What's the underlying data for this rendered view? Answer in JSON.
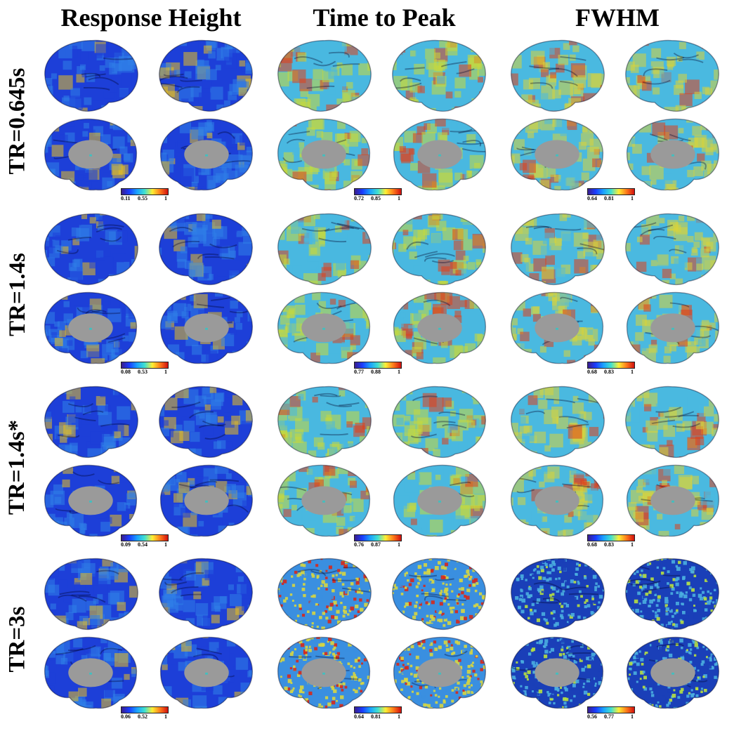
{
  "columns": [
    {
      "title": "Response Height",
      "colorbar_key": "height"
    },
    {
      "title": "Time to Peak",
      "colorbar_key": "ttp"
    },
    {
      "title": "FWHM",
      "colorbar_key": "fwhm"
    }
  ],
  "rows": [
    {
      "label": "TR=0.645s",
      "colorbars": [
        {
          "min": "0.11",
          "mid": "0.55",
          "max": "1"
        },
        {
          "min": "0.72",
          "mid": "0.85",
          "max": "1"
        },
        {
          "min": "0.64",
          "mid": "0.81",
          "max": "1"
        }
      ]
    },
    {
      "label": "TR=1.4s",
      "colorbars": [
        {
          "min": "0.08",
          "mid": "0.53",
          "max": "1"
        },
        {
          "min": "0.77",
          "mid": "0.88",
          "max": "1"
        },
        {
          "min": "0.68",
          "mid": "0.83",
          "max": "1"
        }
      ]
    },
    {
      "label": "TR=1.4s*",
      "colorbars": [
        {
          "min": "0.09",
          "mid": "0.54",
          "max": "1"
        },
        {
          "min": "0.76",
          "mid": "0.87",
          "max": "1"
        },
        {
          "min": "0.68",
          "mid": "0.83",
          "max": "1"
        }
      ]
    },
    {
      "label": "TR=3s",
      "colorbars": [
        {
          "min": "0.06",
          "mid": "0.52",
          "max": "1"
        },
        {
          "min": "0.64",
          "mid": "0.81",
          "max": "1"
        },
        {
          "min": "0.56",
          "mid": "0.77",
          "max": "1"
        }
      ]
    }
  ],
  "colormap": [
    "#3a1e8c",
    "#1a3cff",
    "#1aa0ff",
    "#40e0d0",
    "#ffee33",
    "#ff7a1a",
    "#d01010"
  ],
  "panel_colors": {
    "height": {
      "base": "#1d3fd8",
      "mid": "#2f7fe8",
      "hot": "#e8c020"
    },
    "ttp": {
      "base": "#49b8e0",
      "mid": "#c9d93a",
      "hot": "#e0401a"
    },
    "fwhm": {
      "base": "#4ab9e0",
      "mid": "#d9d33a",
      "hot": "#e0401a"
    },
    "ttp_noisy": {
      "base": "#3a8fe0",
      "mid": "#d8d640",
      "hot": "#d8281a"
    },
    "fwhm_noisy": {
      "base": "#1a3fb8",
      "mid": "#4aaee0",
      "hot": "#b8e040"
    }
  },
  "subcortical_color": "#9a9a9a"
}
